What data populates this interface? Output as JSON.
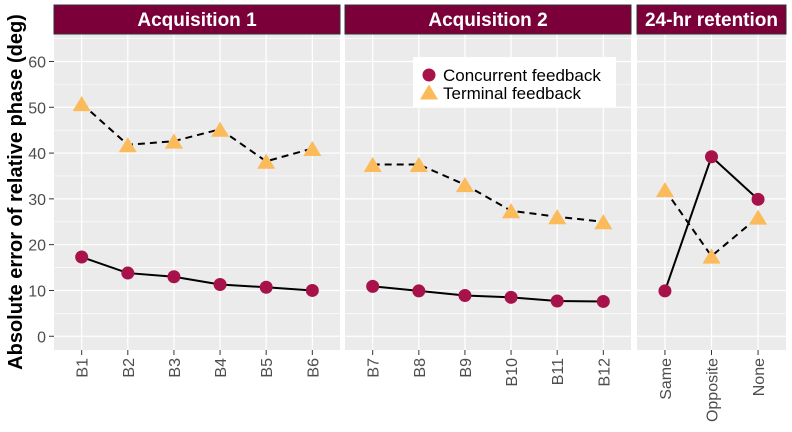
{
  "chart_data": {
    "type": "line",
    "ylabel": "Absolute error of relative phase (deg)",
    "ylim": [
      -3,
      66
    ],
    "yticks": [
      0,
      10,
      20,
      30,
      40,
      50,
      60
    ],
    "ytick_labels": [
      "0",
      "10",
      "20",
      "30",
      "40",
      "50",
      "60"
    ],
    "grid": true,
    "legend_position": "top-right of Acquisition 2 panel",
    "colors": {
      "strip_bg": "#7b003a",
      "panel_bg": "#ebebeb",
      "grid": "#ffffff",
      "concurrent": "#a8124a",
      "terminal": "#fbbb5b",
      "line": "#000000"
    },
    "series_names": [
      "Concurrent feedback",
      "Terminal feedback"
    ],
    "panels": [
      {
        "title": "Acquisition 1",
        "categories": [
          "B1",
          "B2",
          "B3",
          "B4",
          "B5",
          "B6"
        ],
        "series": [
          {
            "name": "Concurrent feedback",
            "values": [
              17.3,
              13.8,
              13.0,
              11.3,
              10.7,
              10.0
            ],
            "connected": true
          },
          {
            "name": "Terminal feedback",
            "values": [
              50.8,
              41.8,
              42.6,
              45.2,
              38.2,
              41.0
            ],
            "connected": true
          }
        ]
      },
      {
        "title": "Acquisition 2",
        "categories": [
          "B7",
          "B8",
          "B9",
          "B10",
          "B11",
          "B12"
        ],
        "series": [
          {
            "name": "Concurrent feedback",
            "values": [
              10.9,
              9.9,
              8.9,
              8.5,
              7.7,
              7.6
            ],
            "connected": true
          },
          {
            "name": "Terminal feedback",
            "values": [
              37.5,
              37.5,
              33.1,
              27.4,
              26.1,
              25.0
            ],
            "connected": true
          }
        ]
      },
      {
        "title": "24-hr retention",
        "categories": [
          "Same",
          "Opposite",
          "None"
        ],
        "series": [
          {
            "name": "Concurrent feedback",
            "values": [
              9.9,
              39.2,
              29.9
            ],
            "connected": true
          },
          {
            "name": "Terminal feedback",
            "values": [
              32.0,
              17.5,
              26.0
            ],
            "connected": true
          }
        ]
      }
    ]
  }
}
